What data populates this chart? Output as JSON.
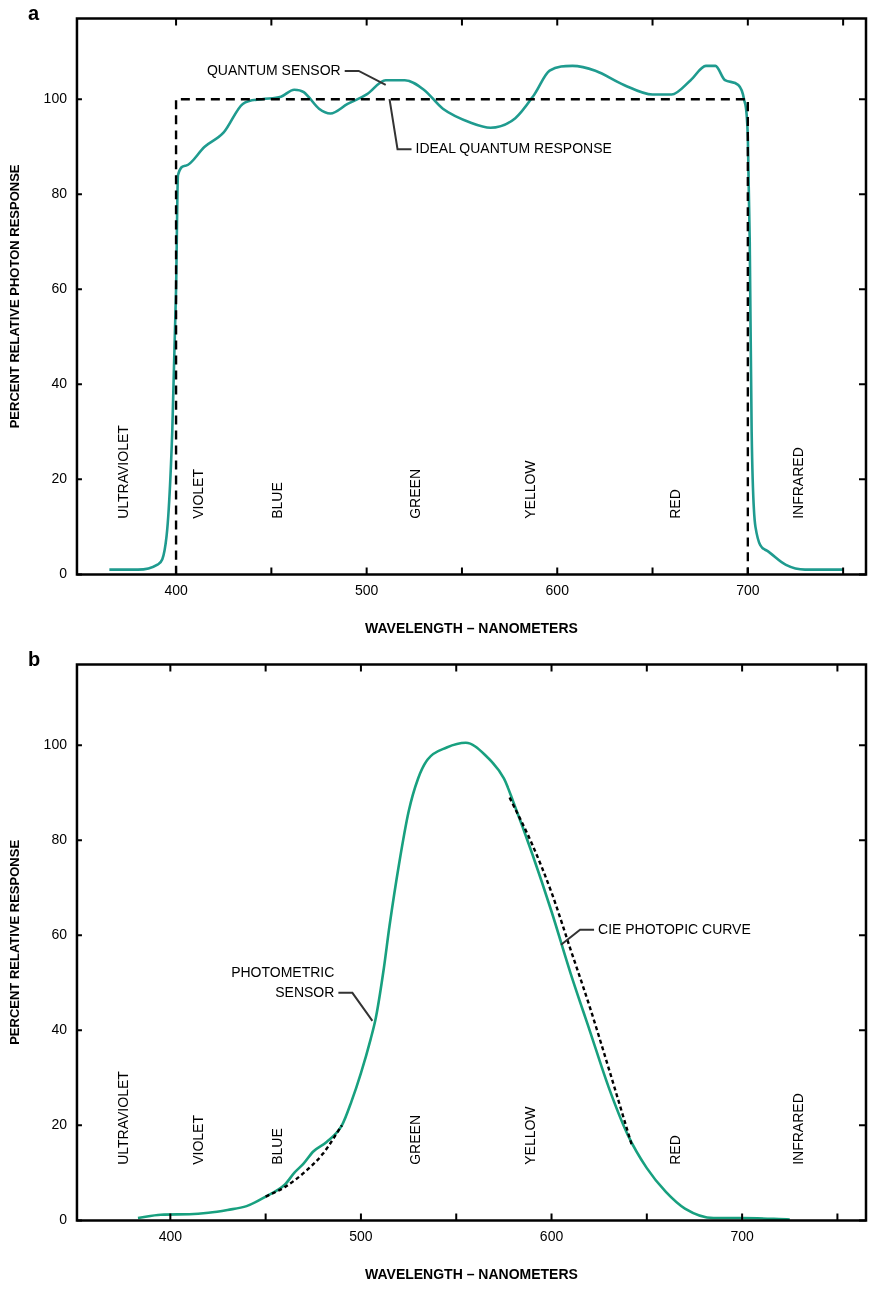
{
  "chart_data": [
    {
      "type": "line",
      "title": "a",
      "xlabel": "WAVELENGTH – NANOMETERS",
      "ylabel": "PERCENT RELATIVE PHOTON RESPONSE",
      "xlim": [
        348,
        762
      ],
      "xticks": [
        400,
        {
          "value": 450,
          "label": null
        },
        500,
        {
          "value": 550,
          "label": null
        },
        600,
        {
          "value": 650,
          "label": null
        },
        700,
        {
          "value": 750,
          "label": null
        }
      ],
      "ylim": [
        0,
        117
      ],
      "yticks": [
        0,
        20,
        40,
        60,
        80,
        100
      ],
      "grid": false,
      "legend": false,
      "marker": "none",
      "series": [
        {
          "color": "#1f9b8f",
          "line_style": "solid",
          "x": [
            365,
            380,
            390,
            395,
            398,
            400,
            401,
            405,
            415,
            425,
            435,
            445,
            455,
            462,
            467,
            475,
            481,
            490,
            500,
            510,
            520,
            530,
            540,
            555,
            565,
            578,
            588,
            596,
            608,
            620,
            635,
            650,
            660,
            670,
            678,
            683,
            688,
            695,
            698,
            700,
            701,
            702,
            704,
            710,
            720,
            730,
            750
          ],
          "values": [
            1,
            1,
            2,
            8,
            30,
            60,
            84,
            86,
            90,
            93,
            99,
            100,
            100.5,
            102,
            101.5,
            98,
            97,
            99,
            101,
            104,
            104,
            102,
            98,
            95,
            94,
            96,
            101,
            106,
            107,
            106,
            103,
            101,
            101,
            104,
            107,
            107,
            104,
            103,
            100,
            92,
            70,
            30,
            10,
            5,
            2,
            1,
            1
          ]
        },
        {
          "color": "#000000",
          "line_style": "dashed",
          "x": [
            400,
            400,
            700,
            700
          ],
          "values": [
            0,
            100,
            100,
            0
          ]
        }
      ],
      "annotations": [
        {
          "text": "QUANTUM SENSOR",
          "x": 510,
          "y": 103
        },
        {
          "text": "IDEAL QUANTUM RESPONSE",
          "x": 512,
          "y": 100
        },
        "ULTRAVIOLET",
        "VIOLET",
        "BLUE",
        "GREEN",
        "YELLOW",
        "RED",
        "INFRARED"
      ]
    },
    {
      "type": "line",
      "title": "b",
      "xlabel": "WAVELENGTH – NANOMETERS",
      "ylabel": "PERCENT RELATIVE RESPONSE",
      "xlim": [
        351,
        765
      ],
      "xticks": [
        400,
        {
          "value": 450,
          "label": null
        },
        500,
        {
          "value": 550,
          "label": null
        },
        600,
        {
          "value": 650,
          "label": null
        },
        700,
        {
          "value": 750,
          "label": null
        }
      ],
      "ylim": [
        0,
        117
      ],
      "yticks": [
        0,
        20,
        40,
        60,
        80,
        100
      ],
      "grid": false,
      "legend": false,
      "marker": "none",
      "series": [
        {
          "color": "#18a07f",
          "line_style": "solid",
          "x": [
            383,
            395,
            410,
            420,
            430,
            440,
            450,
            460,
            465,
            470,
            475,
            482,
            490,
            495,
            500,
            505,
            508,
            512,
            515,
            520,
            525,
            530,
            535,
            545,
            555,
            565,
            575,
            580,
            590,
            600,
            610,
            620,
            630,
            640,
            650,
            660,
            670,
            685,
            700,
            725
          ],
          "values": [
            0.5,
            1.2,
            1.3,
            1.6,
            2.2,
            3,
            5,
            7.5,
            10,
            12,
            14.5,
            16.5,
            20,
            25,
            31,
            38,
            43,
            53,
            62,
            75,
            86,
            93,
            97,
            99.5,
            100.5,
            98,
            93,
            88,
            77,
            65,
            52,
            40,
            28,
            18,
            11,
            6,
            2.5,
            0.5,
            0.5,
            0.2
          ]
        },
        {
          "color": "#000000",
          "line_style": "dotted",
          "x": [
            450,
            460,
            470,
            480,
            490,
            530,
            578,
            590,
            600,
            610,
            620,
            630,
            642
          ],
          "values": [
            5,
            7,
            10,
            14,
            20,
            null,
            89,
            79,
            69,
            57,
            45,
            32,
            16
          ]
        }
      ],
      "annotations": [
        {
          "text": "CIE PHOTOPIC CURVE",
          "x": 605,
          "y": 58
        },
        {
          "text": "PHOTOMETRIC\nSENSOR",
          "x": 506,
          "y": 42
        },
        "ULTRAVIOLET",
        "VIOLET",
        "BLUE",
        "GREEN",
        "YELLOW",
        "RED",
        "INFRARED"
      ]
    }
  ]
}
